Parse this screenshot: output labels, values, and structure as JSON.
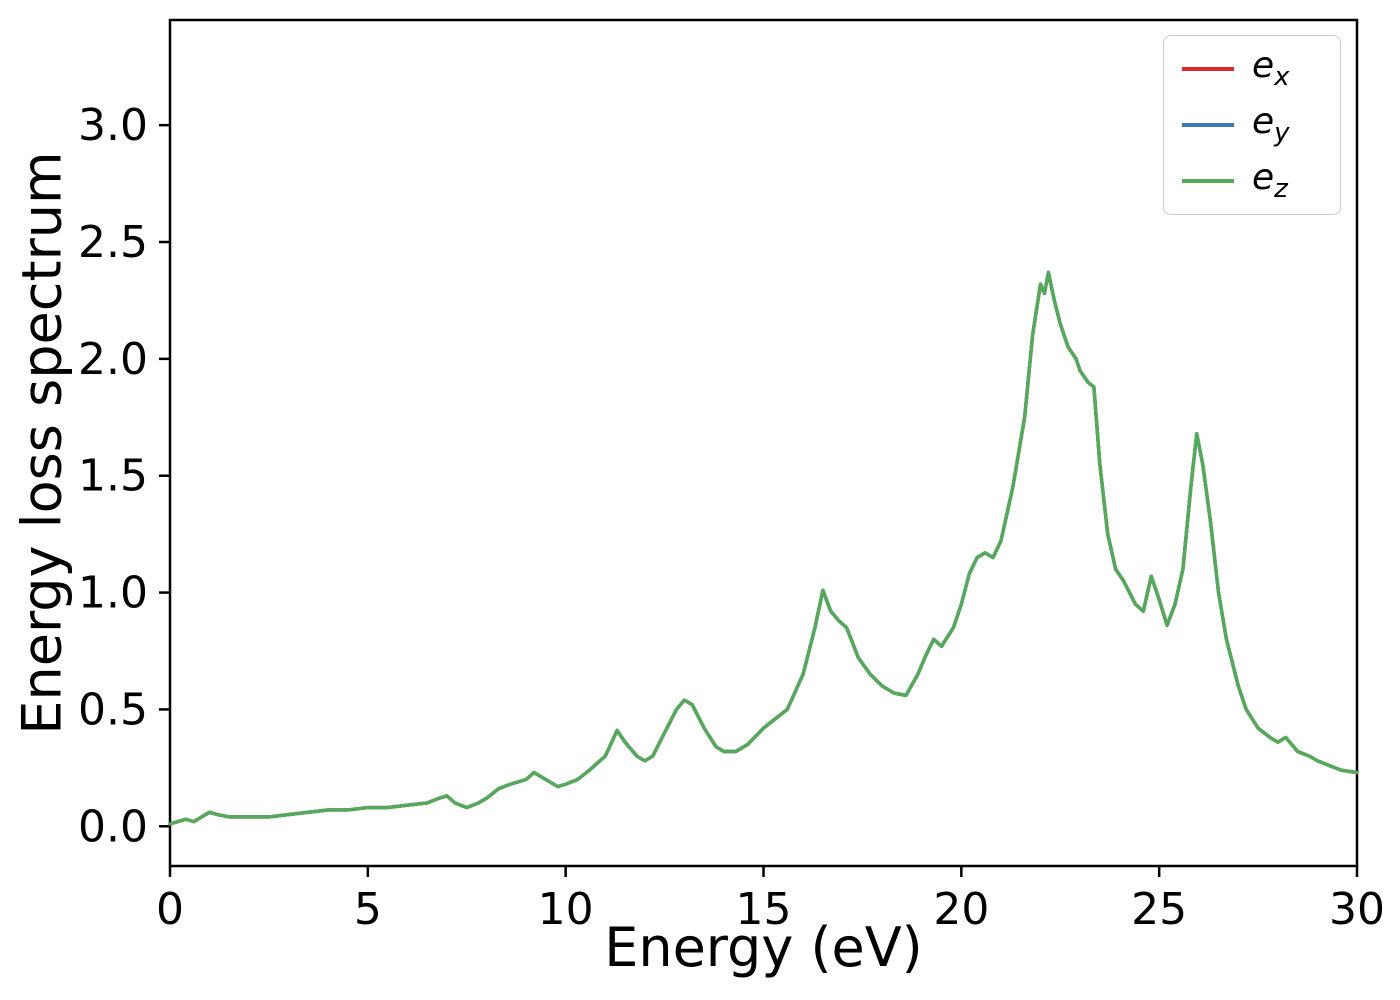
{
  "figure": {
    "background": "#ffffff"
  },
  "chart_data": {
    "type": "line",
    "title": "",
    "xlabel": "Energy (eV)",
    "ylabel": "Energy loss spectrum",
    "xlim": [
      0,
      30
    ],
    "ylim": [
      -0.17,
      3.45
    ],
    "xticks": [
      0,
      5,
      10,
      15,
      20,
      25,
      30
    ],
    "xticklabels": [
      "0",
      "5",
      "10",
      "15",
      "20",
      "25",
      "30"
    ],
    "yticks": [
      0.0,
      0.5,
      1.0,
      1.5,
      2.0,
      2.5,
      3.0
    ],
    "yticklabels": [
      "0.0",
      "0.5",
      "1.0",
      "1.5",
      "2.0",
      "2.5",
      "3.0"
    ],
    "grid": false,
    "legend_position": "upper right",
    "note": "All three series overlap exactly; only e_z (green, drawn last) is visible in the plot.",
    "x": [
      0,
      0.2,
      0.4,
      0.6,
      0.8,
      1.0,
      1.2,
      1.5,
      2.0,
      2.5,
      3.0,
      3.5,
      4.0,
      4.5,
      5.0,
      5.5,
      6.0,
      6.5,
      6.8,
      7.0,
      7.2,
      7.5,
      7.8,
      8.0,
      8.3,
      8.6,
      9.0,
      9.2,
      9.5,
      9.8,
      10.0,
      10.3,
      10.6,
      11.0,
      11.3,
      11.5,
      11.8,
      12.0,
      12.2,
      12.5,
      12.8,
      13.0,
      13.2,
      13.5,
      13.8,
      14.0,
      14.3,
      14.6,
      15.0,
      15.3,
      15.6,
      16.0,
      16.3,
      16.5,
      16.7,
      16.9,
      17.1,
      17.4,
      17.7,
      18.0,
      18.3,
      18.6,
      18.9,
      19.1,
      19.3,
      19.5,
      19.8,
      20.0,
      20.2,
      20.4,
      20.6,
      20.8,
      21.0,
      21.3,
      21.6,
      21.8,
      22.0,
      22.1,
      22.2,
      22.35,
      22.5,
      22.7,
      22.9,
      23.0,
      23.2,
      23.35,
      23.5,
      23.7,
      23.9,
      24.1,
      24.4,
      24.6,
      24.8,
      25.0,
      25.2,
      25.4,
      25.6,
      25.8,
      25.95,
      26.1,
      26.3,
      26.5,
      26.7,
      27.0,
      27.2,
      27.5,
      27.8,
      28.0,
      28.2,
      28.5,
      28.8,
      29.0,
      29.3,
      29.6,
      30.0
    ],
    "shared_values": [
      0.01,
      0.02,
      0.03,
      0.02,
      0.04,
      0.06,
      0.05,
      0.04,
      0.04,
      0.04,
      0.05,
      0.06,
      0.07,
      0.07,
      0.08,
      0.08,
      0.09,
      0.1,
      0.12,
      0.13,
      0.1,
      0.08,
      0.1,
      0.12,
      0.16,
      0.18,
      0.2,
      0.23,
      0.2,
      0.17,
      0.18,
      0.2,
      0.24,
      0.3,
      0.41,
      0.36,
      0.3,
      0.28,
      0.3,
      0.4,
      0.5,
      0.54,
      0.52,
      0.42,
      0.34,
      0.32,
      0.32,
      0.35,
      0.42,
      0.46,
      0.5,
      0.65,
      0.85,
      1.01,
      0.92,
      0.88,
      0.85,
      0.72,
      0.65,
      0.6,
      0.57,
      0.56,
      0.65,
      0.73,
      0.8,
      0.77,
      0.85,
      0.95,
      1.08,
      1.15,
      1.17,
      1.15,
      1.22,
      1.45,
      1.75,
      2.1,
      2.32,
      2.28,
      2.37,
      2.25,
      2.15,
      2.05,
      2.0,
      1.95,
      1.9,
      1.88,
      1.55,
      1.25,
      1.1,
      1.05,
      0.95,
      0.92,
      1.07,
      0.97,
      0.86,
      0.95,
      1.1,
      1.45,
      1.68,
      1.55,
      1.3,
      1.0,
      0.8,
      0.6,
      0.5,
      0.42,
      0.38,
      0.36,
      0.38,
      0.32,
      0.3,
      0.28,
      0.26,
      0.24,
      0.23
    ],
    "series": [
      {
        "name": "e_x",
        "label_base": "e",
        "label_sub": "x",
        "color": "#d62c2c",
        "values": "shared"
      },
      {
        "name": "e_y",
        "label_base": "e",
        "label_sub": "y",
        "color": "#3d7ab8",
        "values": "shared"
      },
      {
        "name": "e_z",
        "label_base": "e",
        "label_sub": "z",
        "color": "#55a95a",
        "values": "shared"
      }
    ],
    "axis_color": "#000000",
    "line_width": 3.4
  }
}
